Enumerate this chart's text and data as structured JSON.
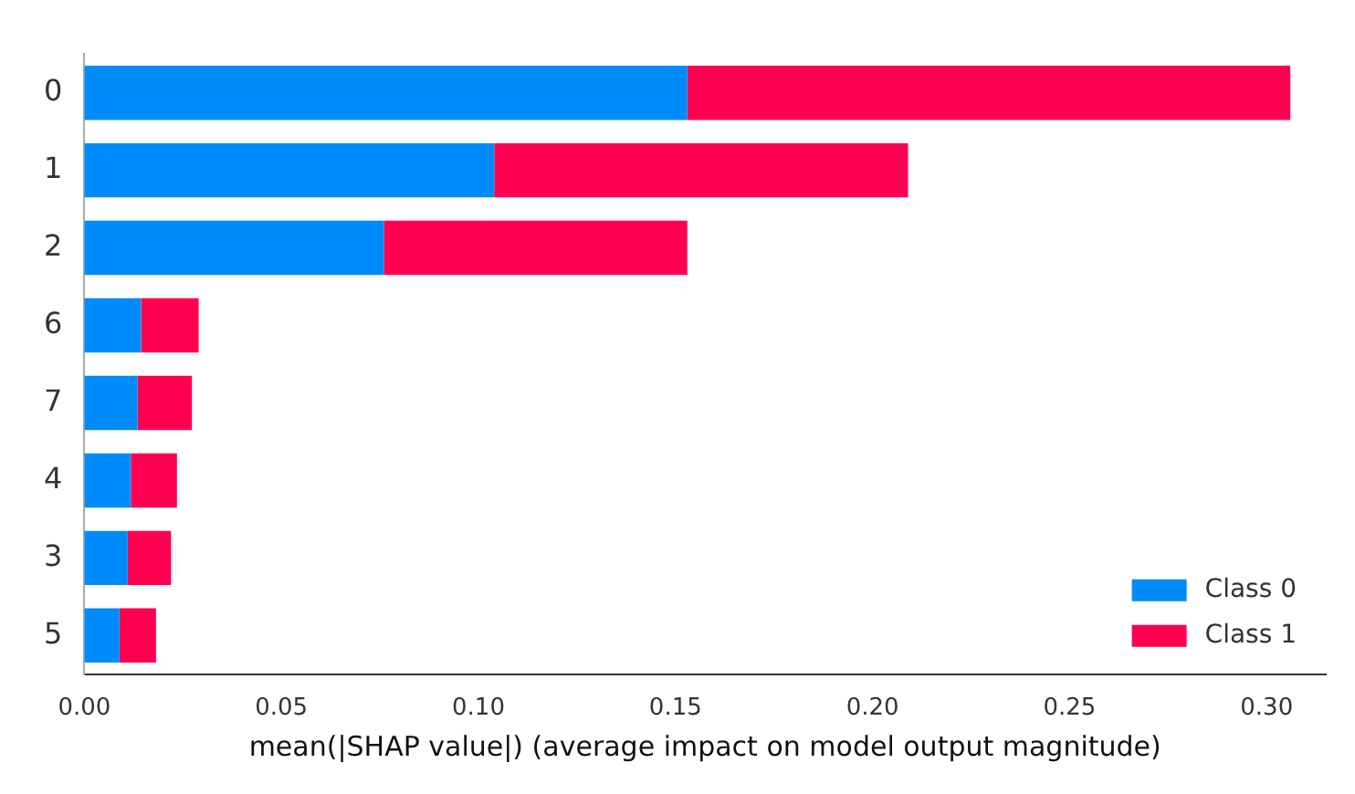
{
  "chart_data": {
    "type": "bar",
    "orientation": "horizontal",
    "stacked": true,
    "xlabel": "mean(|SHAP value|) (average impact on model output magnitude)",
    "categories": [
      "0",
      "1",
      "2",
      "6",
      "7",
      "4",
      "3",
      "5"
    ],
    "series": [
      {
        "name": "Class 0",
        "color": "#008bfb",
        "values": [
          0.153,
          0.104,
          0.076,
          0.0144,
          0.0135,
          0.0118,
          0.011,
          0.0089
        ]
      },
      {
        "name": "Class 1",
        "color": "#ff0051",
        "values": [
          0.153,
          0.105,
          0.077,
          0.0146,
          0.0138,
          0.0117,
          0.011,
          0.0093
        ]
      }
    ],
    "xlim": [
      0,
      0.315
    ],
    "xticks": [
      {
        "value": 0,
        "label": "0.00"
      },
      {
        "value": 0.05,
        "label": "0.05"
      },
      {
        "value": 0.1,
        "label": "0.10"
      },
      {
        "value": 0.15,
        "label": "0.15"
      },
      {
        "value": 0.2,
        "label": "0.20"
      },
      {
        "value": 0.25,
        "label": "0.25"
      },
      {
        "value": 0.3,
        "label": "0.30"
      }
    ],
    "grid": false,
    "legend": "bottom right"
  }
}
